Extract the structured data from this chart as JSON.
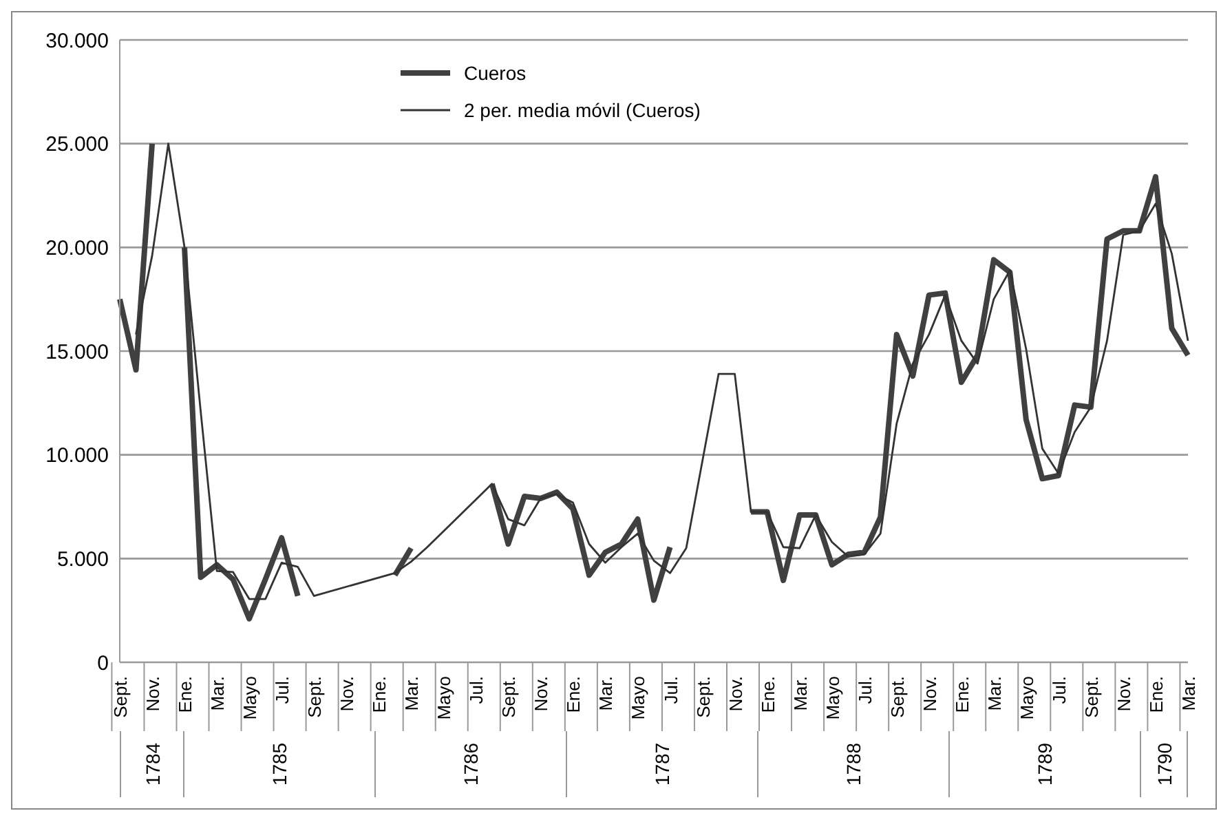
{
  "chart_data": {
    "type": "line",
    "categories": [
      "Sept.",
      null,
      "Nov.",
      null,
      "Ene.",
      null,
      "Mar.",
      null,
      "Mayo",
      null,
      "Jul.",
      null,
      "Sept.",
      null,
      "Nov.",
      null,
      "Ene.",
      null,
      "Mar.",
      null,
      "Mayo",
      null,
      "Jul.",
      null,
      "Sept.",
      null,
      "Nov.",
      null,
      "Ene.",
      null,
      "Mar.",
      null,
      "Mayo",
      null,
      "Jul.",
      null,
      "Sept.",
      null,
      "Nov.",
      null,
      "Ene.",
      null,
      "Mar.",
      null,
      "Mayo",
      null,
      "Jul.",
      null,
      "Sept.",
      null,
      "Nov.",
      null,
      "Ene.",
      null,
      "Mar.",
      null,
      "Mayo",
      null,
      "Jul.",
      null,
      "Sept.",
      null,
      "Nov.",
      null,
      "Ene.",
      null,
      "Mar."
    ],
    "series": [
      {
        "name": "Cueros",
        "color": "#404040",
        "values": [
          17500,
          14100,
          25000,
          null,
          20000,
          4100,
          4700,
          4000,
          2100,
          4000,
          6000,
          3200,
          null,
          null,
          null,
          null,
          null,
          4200,
          5500,
          null,
          null,
          null,
          null,
          8600,
          5700,
          8000,
          7900,
          8200,
          7400,
          4200,
          5300,
          5700,
          6900,
          3000,
          5550,
          null,
          null,
          null,
          null,
          7250,
          7250,
          3950,
          7100,
          7100,
          4700,
          5200,
          5300,
          7000,
          15800,
          13800,
          17700,
          17800,
          13500,
          14800,
          19400,
          18800,
          11700,
          8850,
          9000,
          12400,
          12300,
          20400,
          20800,
          20800,
          23400,
          16100,
          14800
        ]
      },
      {
        "name": "2 per. media móvil (Cueros)",
        "color": "#333333",
        "values": [
          null,
          15800,
          19600,
          25000,
          20000,
          12100,
          4400,
          4350,
          3050,
          3050,
          4800,
          4600,
          3200,
          null,
          null,
          null,
          null,
          4300,
          4850,
          5550,
          null,
          null,
          null,
          8600,
          6900,
          6600,
          7900,
          8100,
          7700,
          5700,
          4800,
          5550,
          6200,
          4900,
          4300,
          5500,
          null,
          13900,
          13900,
          7250,
          7250,
          5550,
          5500,
          7100,
          5800,
          5100,
          5200,
          6200,
          11500,
          14400,
          15800,
          17700,
          15500,
          14400,
          17500,
          18900,
          15100,
          10300,
          9100,
          11100,
          12300,
          15500,
          20600,
          20800,
          22100,
          19700,
          15500
        ]
      }
    ],
    "annotations": [
      "1784",
      "1785",
      "1786",
      "1787",
      "1788",
      "1789",
      "1790"
    ],
    "ylim": [
      0,
      30000
    ],
    "yticks": [
      0,
      {
        "value": 5000,
        "label": "5.000"
      },
      {
        "value": 10000,
        "label": "10.000"
      },
      {
        "value": 15000,
        "label": "15.000"
      },
      {
        "value": 20000,
        "label": "20.000"
      },
      {
        "value": 25000,
        "label": "25.000"
      },
      {
        "value": 30000,
        "label": "30.000"
      }
    ],
    "grid": "y",
    "legend": "top",
    "marker": "none",
    "line_style": "solid"
  }
}
